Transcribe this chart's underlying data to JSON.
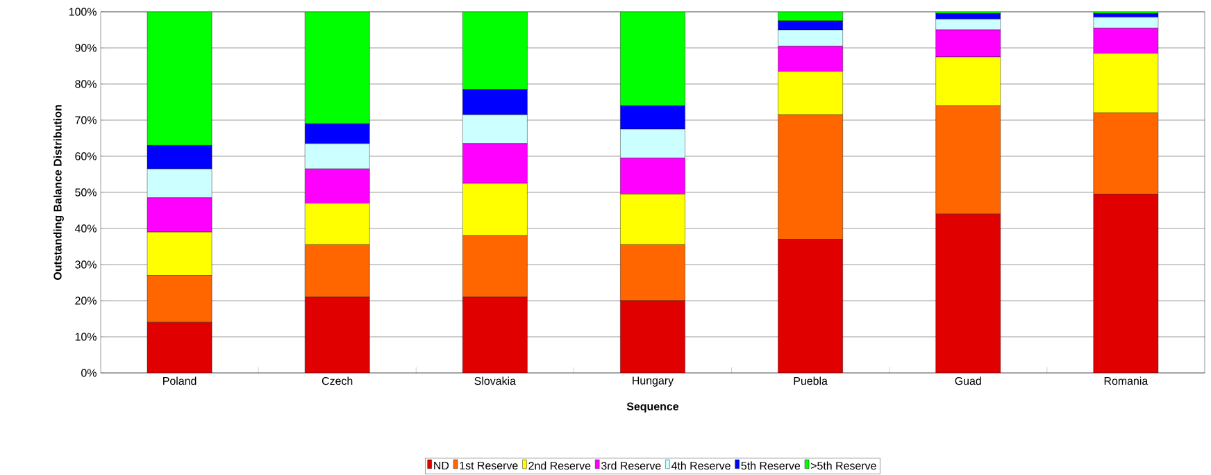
{
  "chart_data": {
    "type": "bar",
    "stacked": true,
    "xlabel": "Sequence",
    "ylabel": "Outstanding Balance Distribution",
    "categories": [
      "Poland",
      "Czech",
      "Slovakia",
      "Hungary",
      "Puebla",
      "Guad",
      "Romania"
    ],
    "series": [
      {
        "name": "ND",
        "color": "#e00000",
        "values": [
          14,
          21,
          21,
          20,
          37,
          44,
          49.5
        ]
      },
      {
        "name": "1st Reserve",
        "color": "#ff6600",
        "values": [
          13,
          14.5,
          17,
          15.5,
          34.5,
          30,
          22.5
        ]
      },
      {
        "name": "2nd Reserve",
        "color": "#ffff00",
        "values": [
          12,
          11.5,
          14.5,
          14,
          12,
          13.5,
          16.5
        ]
      },
      {
        "name": "3rd Reserve",
        "color": "#ff00ff",
        "values": [
          9.5,
          9.5,
          11,
          10,
          7,
          7.5,
          7
        ]
      },
      {
        "name": "4th Reserve",
        "color": "#ccffff",
        "values": [
          8,
          7,
          8,
          8,
          4.5,
          3,
          3
        ]
      },
      {
        "name": "5th Reserve",
        "color": "#0000ff",
        "values": [
          6.5,
          5.5,
          7,
          6.5,
          2.5,
          1.5,
          1
        ]
      },
      {
        "name": ">5th Reserve",
        "color": "#00ff00",
        "values": [
          37,
          31,
          21.5,
          26,
          2.5,
          0.5,
          0.5
        ]
      }
    ],
    "ylim": [
      0,
      100
    ],
    "yticks": [
      {
        "value": 0,
        "label": "0%"
      },
      {
        "value": 10,
        "label": "10%"
      },
      {
        "value": 20,
        "label": "20%"
      },
      {
        "value": 30,
        "label": "30%"
      },
      {
        "value": 40,
        "label": "40%"
      },
      {
        "value": 50,
        "label": "50%"
      },
      {
        "value": 60,
        "label": "60%"
      },
      {
        "value": 70,
        "label": "70%"
      },
      {
        "value": 80,
        "label": "80%"
      },
      {
        "value": 90,
        "label": "90%"
      },
      {
        "value": 100,
        "label": "100%"
      }
    ],
    "grid": "y",
    "legend": "bottom"
  }
}
